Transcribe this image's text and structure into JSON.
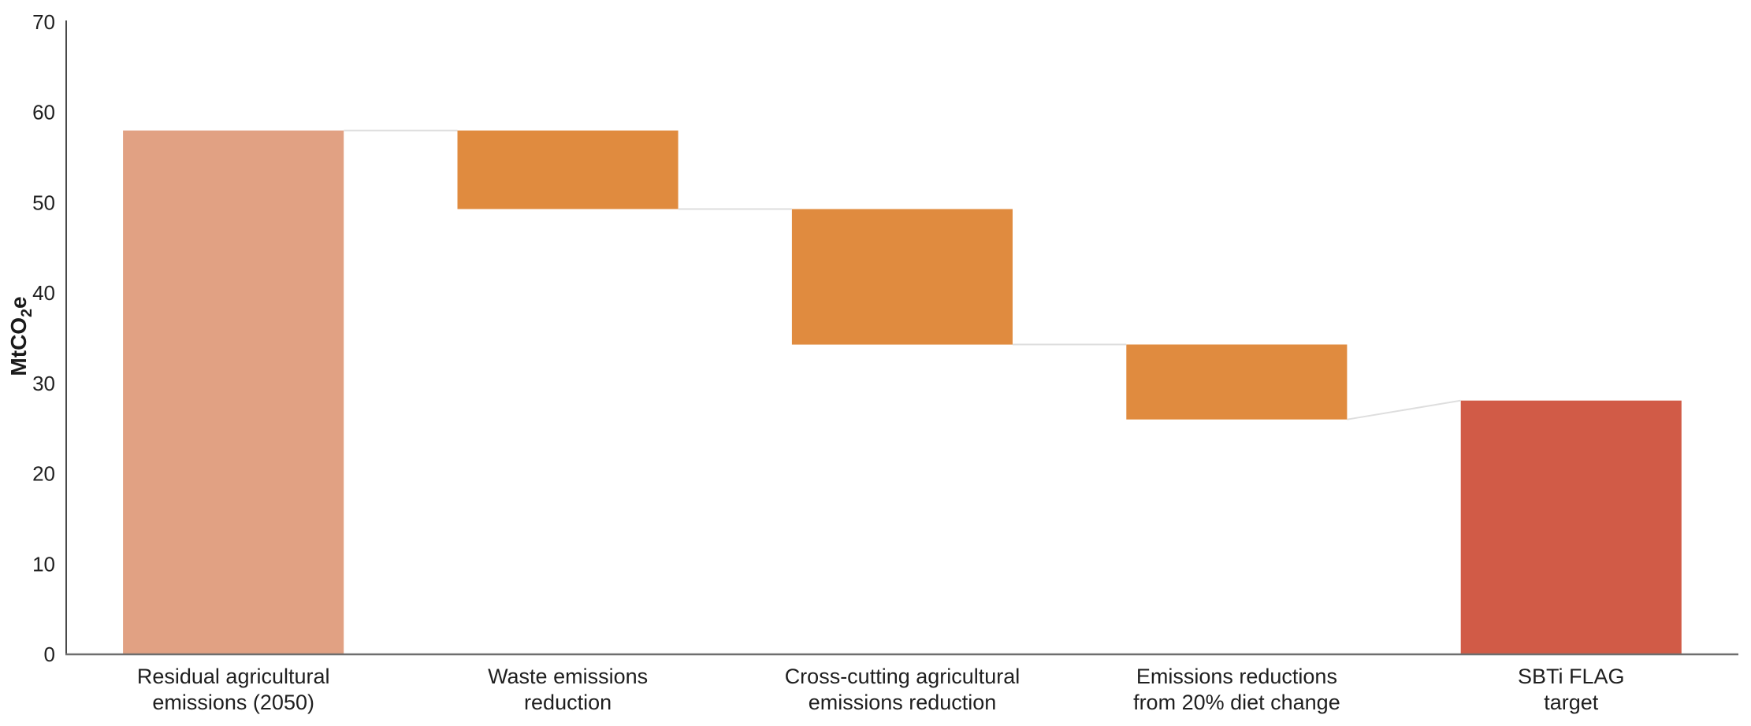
{
  "page": {
    "background": "#ffffff"
  },
  "chart_data": {
    "type": "bar",
    "variant": "waterfall",
    "title": "",
    "xlabel": "",
    "ylabel": "MtCO2e",
    "ylabel_parts": {
      "pre": "MtCO",
      "sub": "2",
      "post": "e"
    },
    "ylim": [
      0,
      70
    ],
    "yticks": [
      0,
      10,
      20,
      30,
      40,
      50,
      60,
      70
    ],
    "grid": false,
    "legend": false,
    "connector_color": "#DEDEDE",
    "y_axis_color": "#4A4A4A",
    "x_axis_color": "#6E6E6E",
    "text_color": "#202020",
    "categories": [
      "Residual agricultural emissions (2050)",
      "Waste emissions reduction",
      "Cross-cutting agricultural emissions reduction",
      "Emissions reductions from 20% diet change",
      "SBTi FLAG target"
    ],
    "bars": [
      {
        "name": "residual-agricultural-emissions-2050",
        "label_lines": [
          "Residual agricultural",
          "emissions (2050)"
        ],
        "base": 0,
        "top": 58.0,
        "color": "#E1A183"
      },
      {
        "name": "waste-emissions-reduction",
        "label_lines": [
          "Waste emissions",
          "reduction"
        ],
        "base": 49.3,
        "top": 58.0,
        "color": "#E08B3F"
      },
      {
        "name": "cross-cutting-agricultural-emissions-reduction",
        "label_lines": [
          "Cross-cutting agricultural",
          "emissions reduction"
        ],
        "base": 34.3,
        "top": 49.3,
        "color": "#E08B3F"
      },
      {
        "name": "emissions-reductions-from-20-diet-change",
        "label_lines": [
          "Emissions reductions",
          "from 20% diet change"
        ],
        "base": 26.0,
        "top": 34.3,
        "color": "#E08B3F"
      },
      {
        "name": "sbti-flag-target",
        "label_lines": [
          "SBTi FLAG",
          "target"
        ],
        "base": 0,
        "top": 28.1,
        "color": "#D15B47"
      }
    ],
    "connectors": [
      {
        "from_bar": 0,
        "to_bar": 1,
        "from_value": 58.0,
        "to_value": 58.0
      },
      {
        "from_bar": 1,
        "to_bar": 2,
        "from_value": 49.3,
        "to_value": 49.3
      },
      {
        "from_bar": 2,
        "to_bar": 3,
        "from_value": 34.3,
        "to_value": 34.3
      },
      {
        "from_bar": 3,
        "to_bar": 4,
        "from_value": 26.0,
        "to_value": 28.1
      }
    ]
  }
}
